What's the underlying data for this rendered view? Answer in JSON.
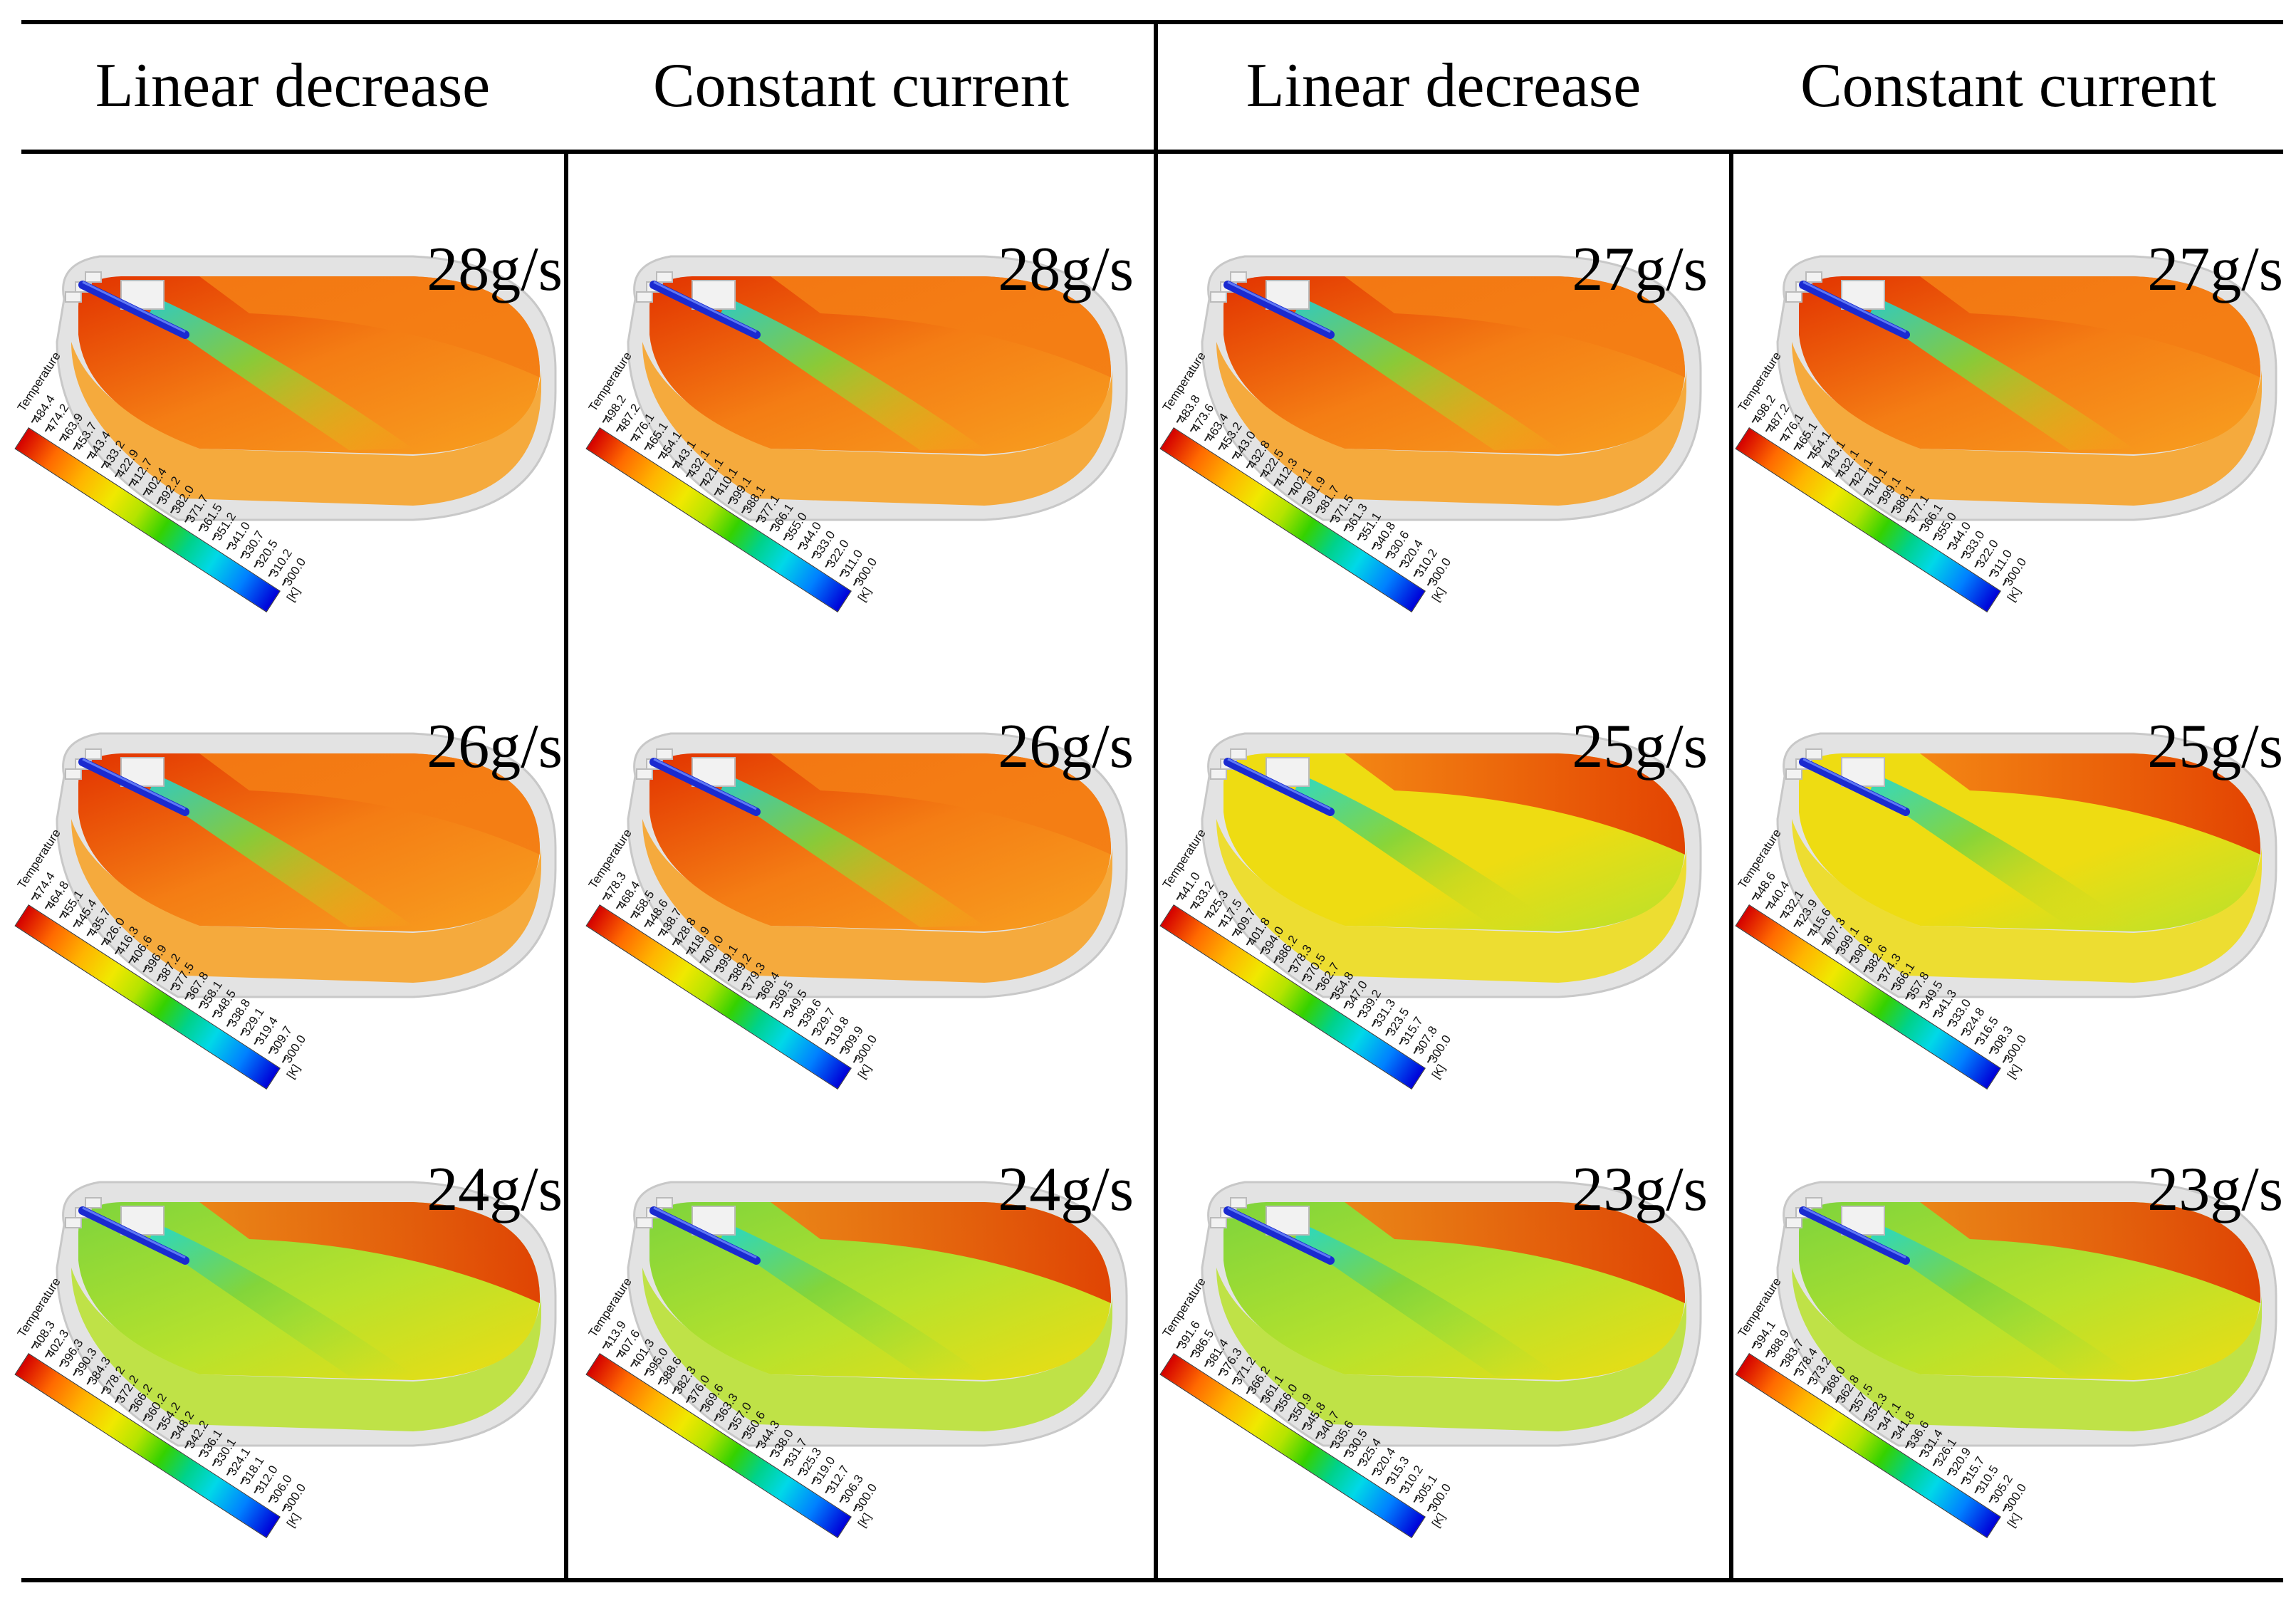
{
  "figure": {
    "headers": [
      "Linear decrease",
      "Constant current",
      "Linear decrease",
      "Constant current"
    ],
    "legend_title": "Temperature",
    "legend_unit": "[K]",
    "colors": {
      "hot": "#e23300",
      "orange": "#f47d14",
      "amber": "#f8a020",
      "yellow": "#eedc12",
      "lime": "#b8e22c",
      "green": "#7ed43c",
      "cyan": "#1ad8d8",
      "pipe": "#1a2ad0",
      "shell": "#e3e3e3"
    },
    "panels": [
      {
        "rate": "28g/s",
        "theme": "hot1",
        "ticks": [
          "484.4",
          "474.2",
          "463.9",
          "453.7",
          "443.4",
          "433.2",
          "422.9",
          "412.7",
          "402.4",
          "392.2",
          "382.0",
          "371.7",
          "361.5",
          "351.2",
          "341.0",
          "330.7",
          "320.5",
          "310.2",
          "300.0"
        ]
      },
      {
        "rate": "28g/s",
        "theme": "hot2",
        "ticks": [
          "498.2",
          "487.2",
          "476.1",
          "465.1",
          "454.1",
          "443.1",
          "432.1",
          "421.1",
          "410.1",
          "399.1",
          "388.1",
          "377.1",
          "366.1",
          "355.0",
          "344.0",
          "333.0",
          "322.0",
          "311.0",
          "300.0"
        ]
      },
      {
        "rate": "27g/s",
        "theme": "hot1",
        "ticks": [
          "483.8",
          "473.6",
          "463.4",
          "453.2",
          "443.0",
          "432.8",
          "422.5",
          "412.3",
          "402.1",
          "391.9",
          "381.7",
          "371.5",
          "361.3",
          "351.1",
          "340.8",
          "330.6",
          "320.4",
          "310.2",
          "300.0"
        ]
      },
      {
        "rate": "27g/s",
        "theme": "hot2",
        "ticks": [
          "498.2",
          "487.2",
          "476.1",
          "465.1",
          "454.1",
          "443.1",
          "432.1",
          "421.1",
          "410.1",
          "399.1",
          "388.1",
          "377.1",
          "366.1",
          "355.0",
          "344.0",
          "333.0",
          "322.0",
          "311.0",
          "300.0"
        ]
      },
      {
        "rate": "26g/s",
        "theme": "hot1",
        "ticks": [
          "474.4",
          "464.8",
          "455.1",
          "445.4",
          "435.7",
          "426.0",
          "416.3",
          "406.6",
          "396.9",
          "387.2",
          "377.5",
          "367.8",
          "358.1",
          "348.5",
          "338.8",
          "329.1",
          "319.4",
          "309.7",
          "300.0"
        ]
      },
      {
        "rate": "26g/s",
        "theme": "hot2",
        "ticks": [
          "478.3",
          "468.4",
          "458.5",
          "448.6",
          "438.7",
          "428.8",
          "418.9",
          "409.0",
          "399.1",
          "389.2",
          "379.3",
          "369.4",
          "359.5",
          "349.5",
          "339.6",
          "329.7",
          "319.8",
          "309.9",
          "300.0"
        ]
      },
      {
        "rate": "25g/s",
        "theme": "mid",
        "ticks": [
          "441.0",
          "433.2",
          "425.3",
          "417.5",
          "409.7",
          "401.8",
          "394.0",
          "386.2",
          "378.3",
          "370.5",
          "362.7",
          "354.8",
          "347.0",
          "339.2",
          "331.3",
          "323.5",
          "315.7",
          "307.8",
          "300.0"
        ]
      },
      {
        "rate": "25g/s",
        "theme": "mid",
        "ticks": [
          "448.6",
          "440.4",
          "432.1",
          "423.9",
          "415.6",
          "407.3",
          "399.1",
          "390.8",
          "382.6",
          "374.3",
          "366.1",
          "357.8",
          "349.5",
          "341.3",
          "333.0",
          "324.8",
          "316.5",
          "308.3",
          "300.0"
        ]
      },
      {
        "rate": "24g/s",
        "theme": "cool",
        "ticks": [
          "408.3",
          "402.3",
          "396.3",
          "390.3",
          "384.3",
          "378.2",
          "372.2",
          "366.2",
          "360.2",
          "354.2",
          "348.2",
          "342.2",
          "336.1",
          "330.1",
          "324.1",
          "318.1",
          "312.0",
          "306.0",
          "300.0"
        ]
      },
      {
        "rate": "24g/s",
        "theme": "cool",
        "ticks": [
          "413.9",
          "407.6",
          "401.3",
          "395.0",
          "388.6",
          "382.3",
          "376.0",
          "369.6",
          "363.3",
          "357.0",
          "350.6",
          "344.3",
          "338.0",
          "331.7",
          "325.3",
          "319.0",
          "312.7",
          "306.3",
          "300.0"
        ]
      },
      {
        "rate": "23g/s",
        "theme": "cool",
        "ticks": [
          "391.6",
          "386.5",
          "381.4",
          "376.3",
          "371.2",
          "366.2",
          "361.1",
          "356.0",
          "350.9",
          "345.8",
          "340.7",
          "335.6",
          "330.5",
          "325.4",
          "320.4",
          "315.3",
          "310.2",
          "305.1",
          "300.0"
        ]
      },
      {
        "rate": "23g/s",
        "theme": "cool",
        "ticks": [
          "394.1",
          "388.9",
          "383.7",
          "378.4",
          "373.2",
          "368.0",
          "362.8",
          "357.5",
          "352.3",
          "347.1",
          "341.8",
          "336.6",
          "331.4",
          "326.1",
          "320.9",
          "315.7",
          "310.5",
          "305.2",
          "300.0"
        ]
      }
    ]
  }
}
